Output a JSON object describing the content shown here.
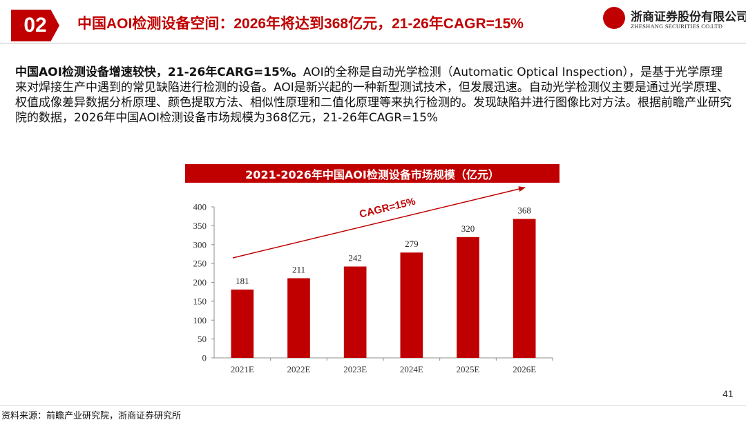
{
  "header": {
    "section_number": "02",
    "title": "中国AOI检测设备空间：2026年将达到368亿元，21-26年CAGR=15%",
    "logo_cn": "浙商证券股份有限公司",
    "logo_en": "ZHESHANG SECURITIES CO.LTD"
  },
  "summary": {
    "lead": "中国AOI检测设备增速较快，21-26年CARG=15%。",
    "body": "AOI的全称是自动光学检测（Automatic Optical Inspection），是基于光学原理来对焊接生产中遇到的常见缺陷进行检测的设备。AOI是新兴起的一种新型测试技术，但发展迅速。自动光学检测仪主要是通过光学原理、权值成像差异数据分析原理、颜色提取方法、相似性原理和二值化原理等来执行检测的。发现缺陷并进行图像比对方法。根据前瞻产业研究院的数据，2026年中国AOI检测设备市场规模为368亿元，21-26年CAGR=15%"
  },
  "chart_data": {
    "type": "bar",
    "title": "2021-2026年中国AOI检测设备市场规模（亿元）",
    "categories": [
      "2021E",
      "2022E",
      "2023E",
      "2024E",
      "2025E",
      "2026E"
    ],
    "values": [
      181,
      211,
      242,
      279,
      320,
      368
    ],
    "ylim": [
      0,
      400
    ],
    "yticks": [
      0,
      50,
      100,
      150,
      200,
      250,
      300,
      350,
      400
    ],
    "annotation": "CAGR=15%",
    "bar_color": "#c00000",
    "grid": false
  },
  "footer": {
    "page_number": "41",
    "source": "资料来源：前瞻产业研究院，浙商证券研究所"
  }
}
